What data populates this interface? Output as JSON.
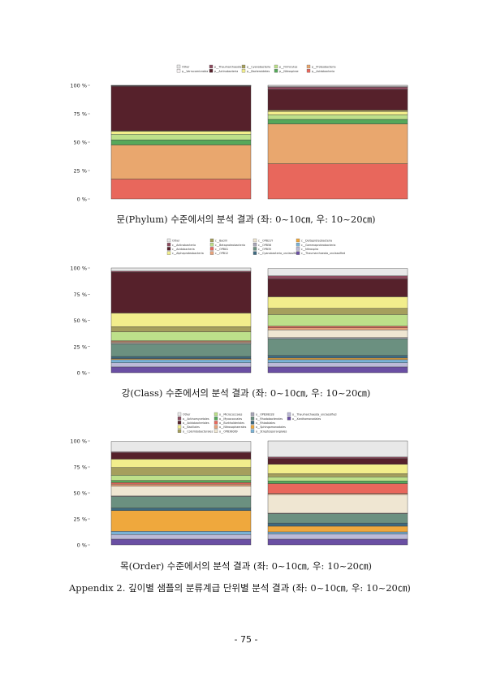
{
  "chart_data": [
    {
      "type": "bar",
      "stacked": true,
      "categories": [
        "0~10cm",
        "10~20cm"
      ],
      "yticks": [
        "0 %",
        "25 %",
        "50 %",
        "75 %",
        "100 %"
      ],
      "ylim": [
        0,
        100
      ],
      "legend_position": "top",
      "series": [
        {
          "name": "p__Acidobacteria",
          "color": "#e8675c",
          "values": [
            17.5,
            31
          ]
        },
        {
          "name": "p__Proteobacteria",
          "color": "#e9a76e",
          "values": [
            30,
            35
          ]
        },
        {
          "name": "p__Nitrospirae",
          "color": "#55a85a",
          "values": [
            4.5,
            4
          ]
        },
        {
          "name": "p__Firmicutes",
          "color": "#bde08a",
          "values": [
            5,
            4
          ]
        },
        {
          "name": "p__Bacteroidetes",
          "color": "#f2ee8c",
          "values": [
            2.5,
            3
          ]
        },
        {
          "name": "p__Cyanobacteria",
          "color": "#a59f5d",
          "values": [
            0.5,
            1.2
          ]
        },
        {
          "name": "p__Actinobacteria",
          "color": "#56212b",
          "values": [
            39,
            18
          ]
        },
        {
          "name": "p__Thaumarchaeota",
          "color": "#8c4b5e",
          "values": [
            0.5,
            2.3
          ]
        },
        {
          "name": "p__Verrucomicrobia",
          "color": "#f7f1f3",
          "values": [
            0.3,
            0.7
          ]
        },
        {
          "name": "Other",
          "color": "#e8e8e8",
          "values": [
            0.2,
            0.8
          ]
        }
      ]
    },
    {
      "type": "bar",
      "stacked": true,
      "categories": [
        "0~10cm",
        "10~20cm"
      ],
      "yticks": [
        "0 %",
        "25 %",
        "50 %",
        "75 %",
        "100 %"
      ],
      "ylim": [
        0,
        100
      ],
      "legend_position": "top",
      "series": [
        {
          "name": "c__Thaumarchaeota_unclassified",
          "color": "#6a4fa3",
          "values": [
            5.5,
            5.5
          ]
        },
        {
          "name": "c__Nitrospira",
          "color": "#bcbad8",
          "values": [
            4,
            4
          ]
        },
        {
          "name": "c__Gammaproteobacteria",
          "color": "#7ab2d6",
          "values": [
            3,
            3
          ]
        },
        {
          "name": "c__Deltaproteobacteria",
          "color": "#efa83d",
          "values": [
            1,
            1.5
          ]
        },
        {
          "name": "c__Cyanobacteria_unclassified",
          "color": "#3e6a80",
          "values": [
            2,
            2.5
          ]
        },
        {
          "name": "c__OPB35",
          "color": "#6b9080",
          "values": [
            12,
            16
          ]
        },
        {
          "name": "c__OPB56",
          "color": "#a9a7b8",
          "values": [
            0.5,
            1
          ]
        },
        {
          "name": "c__OPB21Y",
          "color": "#efe6d2",
          "values": [
            1,
            7.5
          ]
        },
        {
          "name": "c__OPB12",
          "color": "#e8a27a",
          "values": [
            1,
            2
          ]
        },
        {
          "name": "c__OPB01",
          "color": "#e8675c",
          "values": [
            0.5,
            1.5
          ]
        },
        {
          "name": "c__Betaproteobacteria",
          "color": "#bde08a",
          "values": [
            8.5,
            11
          ]
        },
        {
          "name": "c__Bacilli",
          "color": "#a59f5d",
          "values": [
            5,
            6
          ]
        },
        {
          "name": "c__Alphaproteobacteria",
          "color": "#f2ee8c",
          "values": [
            13,
            11
          ]
        },
        {
          "name": "c__Acidobacteria",
          "color": "#56212b",
          "values": [
            39,
            17
          ]
        },
        {
          "name": "c__Actinobacteria",
          "color": "#8c4b5e",
          "values": [
            1,
            3
          ]
        },
        {
          "name": "Other",
          "color": "#e8e8e8",
          "values": [
            3,
            7
          ]
        }
      ]
    },
    {
      "type": "bar",
      "stacked": true,
      "categories": [
        "0~10cm",
        "10~20cm"
      ],
      "yticks": [
        "0 %",
        "25 %",
        "50 %",
        "75 %",
        "100 %"
      ],
      "ylim": [
        0,
        100
      ],
      "legend_position": "top",
      "series": [
        {
          "name": "o__Xanthomonadales",
          "color": "#6a4fa3",
          "values": [
            5.5,
            5.5
          ]
        },
        {
          "name": "o__Thaumarchaeota_unclassified",
          "color": "#bcbad8",
          "values": [
            4.5,
            5
          ]
        },
        {
          "name": "o__Streptosporangiales",
          "color": "#7ab2d6",
          "values": [
            3,
            2
          ]
        },
        {
          "name": "o__Sphingomonadales",
          "color": "#efa83d",
          "values": [
            20,
            5.5
          ]
        },
        {
          "name": "o__Rhizobiales",
          "color": "#3e6a80",
          "values": [
            2.5,
            3
          ]
        },
        {
          "name": "o__Rhodobacterales",
          "color": "#6b9080",
          "values": [
            11,
            9
          ]
        },
        {
          "name": "o__OPB38028",
          "color": "#a9a7b8",
          "values": [
            0.5,
            0.5
          ]
        },
        {
          "name": "o__OPB38089",
          "color": "#efe6d2",
          "values": [
            9.5,
            18
          ]
        },
        {
          "name": "o__Nitrosophaerales",
          "color": "#e8a27a",
          "values": [
            2,
            1
          ]
        },
        {
          "name": "o__Burkholderiales",
          "color": "#e8675c",
          "values": [
            1.5,
            9.5
          ]
        },
        {
          "name": "o__Myxococcales",
          "color": "#55a85a",
          "values": [
            2,
            2.5
          ]
        },
        {
          "name": "o__Micrococcales",
          "color": "#bde08a",
          "values": [
            5,
            4
          ]
        },
        {
          "name": "o__Colombobacterales",
          "color": "#a59f5d",
          "values": [
            7.5,
            3
          ]
        },
        {
          "name": "o__Bacillales",
          "color": "#f2ee8c",
          "values": [
            8,
            9
          ]
        },
        {
          "name": "o__Acidobacteriales",
          "color": "#56212b",
          "values": [
            6,
            5.5
          ]
        },
        {
          "name": "o__Actinomycetales",
          "color": "#8c4b5e",
          "values": [
            1,
            1.5
          ]
        },
        {
          "name": "Other",
          "color": "#e8e8e8",
          "values": [
            10,
            15.5
          ]
        }
      ]
    }
  ],
  "captions": {
    "phylum": "문(Phylum) 수준에서의 분석 결과 (좌: 0~10㎝, 우: 10~20㎝)",
    "class": "강(Class) 수준에서의 분석 결과 (좌: 0~10㎝, 우: 10~20㎝)",
    "order": "목(Order) 수준에서의 분석 결과 (좌: 0~10㎝, 우: 10~20㎝)",
    "appendix": "Appendix 2. 깊이별 샘플의 분류계급 단위별 분석 결과 (좌: 0~10㎝, 우: 10~20㎝)"
  },
  "page_number": "- 75 -"
}
